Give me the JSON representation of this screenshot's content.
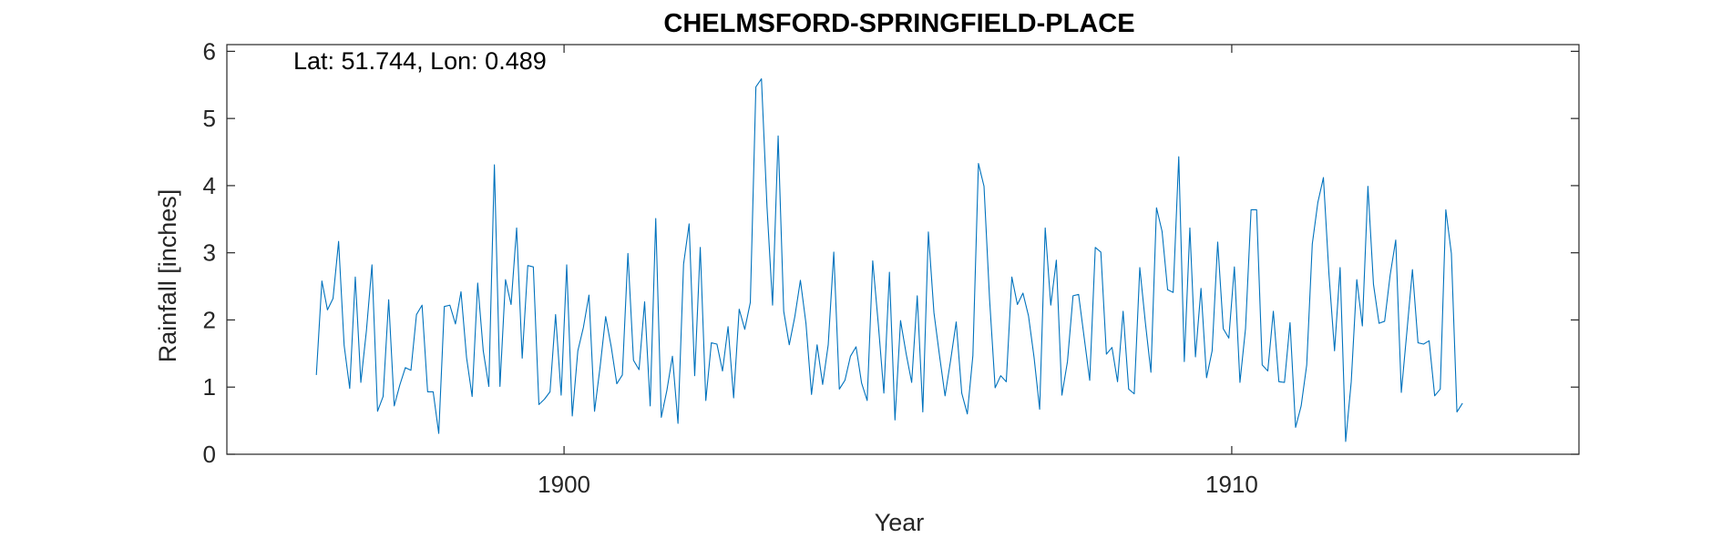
{
  "chart_data": {
    "type": "line",
    "title": "CHELMSFORD-SPRINGFIELD-PLACE",
    "xlabel": "Year",
    "ylabel": "Rainfall [inches]",
    "annotation": "Lat: 51.744, Lon: 0.489",
    "xlim": [
      1894.95,
      1915.2
    ],
    "ylim": [
      0,
      6.1
    ],
    "x_ticks": [
      1900,
      1910
    ],
    "y_ticks": [
      0,
      1,
      2,
      3,
      4,
      5,
      6
    ],
    "x_start": 1896.29,
    "x_step": 0.08333,
    "series_color": "#0072BD",
    "grid": false,
    "box": true,
    "series": [
      {
        "values": [
          1.18,
          2.58,
          2.15,
          2.32,
          3.17,
          1.62,
          0.98,
          2.64,
          1.07,
          1.84,
          2.82,
          0.64,
          0.86,
          2.3,
          0.72,
          1.03,
          1.29,
          1.25,
          2.08,
          2.22,
          0.93,
          0.93,
          0.31,
          2.2,
          2.22,
          1.94,
          2.42,
          1.44,
          0.86,
          2.55,
          1.54,
          1.01,
          4.31,
          1.01,
          2.6,
          2.23,
          3.37,
          1.43,
          2.81,
          2.79,
          0.74,
          0.82,
          0.93,
          2.08,
          0.88,
          2.82,
          0.57,
          1.54,
          1.89,
          2.37,
          0.64,
          1.3,
          2.05,
          1.6,
          1.05,
          1.18,
          2.99,
          1.4,
          1.26,
          2.27,
          0.72,
          3.51,
          0.55,
          0.95,
          1.46,
          0.46,
          2.83,
          3.43,
          1.17,
          3.08,
          0.8,
          1.66,
          1.64,
          1.24,
          1.9,
          0.84,
          2.16,
          1.86,
          2.26,
          5.47,
          5.59,
          3.68,
          2.22,
          4.74,
          2.13,
          1.63,
          2.05,
          2.59,
          1.95,
          0.89,
          1.63,
          1.04,
          1.63,
          3.01,
          0.97,
          1.1,
          1.46,
          1.6,
          1.06,
          0.8,
          2.88,
          1.94,
          0.91,
          2.71,
          0.51,
          1.99,
          1.5,
          1.07,
          2.36,
          0.63,
          3.31,
          2.11,
          1.47,
          0.87,
          1.4,
          1.97,
          0.91,
          0.6,
          1.47,
          4.33,
          3.99,
          2.31,
          0.99,
          1.17,
          1.08,
          2.64,
          2.23,
          2.4,
          2.06,
          1.44,
          0.67,
          3.37,
          2.22,
          2.89,
          0.88,
          1.38,
          2.36,
          2.38,
          1.74,
          1.1,
          3.08,
          3.01,
          1.49,
          1.59,
          1.08,
          2.13,
          0.97,
          0.9,
          2.78,
          1.96,
          1.22,
          3.67,
          3.32,
          2.45,
          2.41,
          4.43,
          1.38,
          3.37,
          1.45,
          2.47,
          1.14,
          1.54,
          3.16,
          1.87,
          1.73,
          2.79,
          1.07,
          1.87,
          3.64,
          3.64,
          1.33,
          1.24,
          2.13,
          1.08,
          1.07,
          1.96,
          0.4,
          0.72,
          1.33,
          3.13,
          3.75,
          4.12,
          2.68,
          1.54,
          2.78,
          0.19,
          1.08,
          2.6,
          1.91,
          3.99,
          2.53,
          1.95,
          1.98,
          2.67,
          3.19,
          0.92,
          1.82,
          2.75,
          1.66,
          1.64,
          1.69,
          0.87,
          0.97,
          3.64,
          2.99,
          0.63,
          0.76
        ]
      }
    ]
  }
}
